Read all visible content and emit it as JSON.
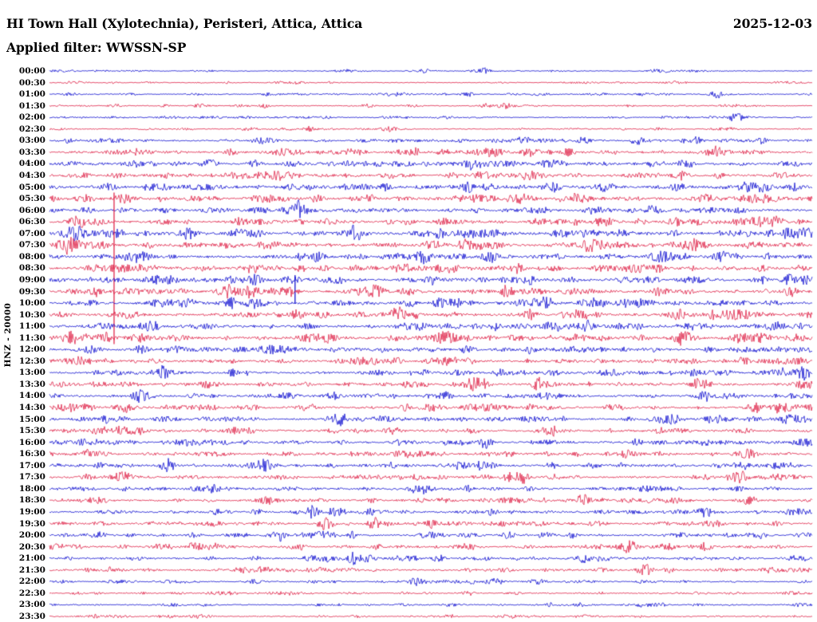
{
  "header": {
    "station_title": "HI Town Hall (Xylotechnia), Peristeri, Attica, Attica",
    "date": "2025-12-03",
    "filter_label": "Applied filter: WWSSN-SP"
  },
  "axis": {
    "left_label": "HNZ - 20000"
  },
  "chart_data": {
    "type": "helicorder-seismogram",
    "station": "HI",
    "site": "Town Hall (Xylotechnia), Peristeri, Attica, Attica",
    "channel": "HNZ",
    "amplitude_scale": 20000,
    "applied_filter": "WWSSN-SP",
    "date": "2025-12-03",
    "row_duration_minutes": 30,
    "legend_position": "none",
    "grid": false,
    "seed": 7,
    "colors": {
      "blue": "#0000cd",
      "red": "#dc143c"
    },
    "rows": [
      {
        "time": "00:00",
        "color": "blue",
        "noise": 0.6,
        "bursts": [
          [
            0.57,
            2.5,
            4
          ]
        ]
      },
      {
        "time": "00:30",
        "color": "red",
        "noise": 0.6,
        "bursts": [
          [
            0.3,
            2,
            3
          ],
          [
            0.82,
            2,
            3
          ]
        ]
      },
      {
        "time": "01:00",
        "color": "blue",
        "noise": 0.7,
        "bursts": [
          [
            0.55,
            3,
            5
          ],
          [
            0.875,
            5,
            6
          ]
        ]
      },
      {
        "time": "01:30",
        "color": "red",
        "noise": 0.7,
        "bursts": [
          [
            0.28,
            2.5,
            4
          ],
          [
            0.6,
            2.5,
            4
          ]
        ]
      },
      {
        "time": "02:00",
        "color": "blue",
        "noise": 0.7,
        "bursts": [
          [
            0.9,
            5,
            7
          ]
        ]
      },
      {
        "time": "02:30",
        "color": "red",
        "noise": 0.7,
        "bursts": [
          [
            0.34,
            2.5,
            4
          ]
        ]
      },
      {
        "time": "03:00",
        "color": "blue",
        "noise": 1.1,
        "bursts": [
          [
            0.62,
            4,
            8
          ],
          [
            0.7,
            4,
            6
          ],
          [
            0.77,
            5,
            6
          ],
          [
            0.85,
            3,
            5
          ]
        ]
      },
      {
        "time": "03:30",
        "color": "red",
        "noise": 1.4,
        "bursts": [
          [
            0.24,
            4,
            6
          ],
          [
            0.48,
            4,
            6
          ],
          [
            0.63,
            5,
            8
          ],
          [
            0.68,
            4,
            6
          ],
          [
            0.87,
            4,
            6
          ]
        ]
      },
      {
        "time": "04:00",
        "color": "blue",
        "noise": 1.5,
        "bursts": [
          [
            0.21,
            5,
            7
          ],
          [
            0.27,
            4,
            6
          ],
          [
            0.55,
            4,
            6
          ],
          [
            0.83,
            4,
            6
          ]
        ]
      },
      {
        "time": "04:30",
        "color": "red",
        "noise": 1.5,
        "bursts": [
          [
            0.3,
            5,
            7
          ],
          [
            0.53,
            4,
            6
          ],
          [
            0.83,
            5,
            6
          ],
          [
            0.88,
            4,
            5
          ]
        ]
      },
      {
        "time": "05:00",
        "color": "blue",
        "noise": 1.7,
        "bursts": [
          [
            0.08,
            4,
            6
          ],
          [
            0.44,
            4,
            6
          ],
          [
            0.55,
            4,
            5
          ],
          [
            0.91,
            4,
            5
          ]
        ]
      },
      {
        "time": "05:30",
        "color": "red",
        "noise": 1.7,
        "bursts": [
          [
            0.1,
            5,
            7
          ],
          [
            0.35,
            5,
            6
          ],
          [
            0.42,
            4,
            5
          ],
          [
            0.62,
            4,
            5
          ]
        ]
      },
      {
        "time": "06:00",
        "color": "blue",
        "noise": 1.5,
        "bursts": [
          [
            0.05,
            4,
            6
          ],
          [
            0.33,
            4,
            5
          ],
          [
            0.64,
            4,
            5
          ],
          [
            0.8,
            4,
            5
          ]
        ]
      },
      {
        "time": "06:30",
        "color": "red",
        "noise": 1.7,
        "bursts": [
          [
            0.04,
            5,
            6
          ],
          [
            0.25,
            5,
            6
          ],
          [
            0.47,
            4,
            5
          ],
          [
            0.72,
            4,
            5
          ],
          [
            0.95,
            4,
            5
          ]
        ]
      },
      {
        "time": "07:00",
        "color": "blue",
        "noise": 1.9,
        "bursts": [
          [
            0.09,
            5,
            6
          ],
          [
            0.18,
            5,
            6
          ],
          [
            0.4,
            5,
            6
          ],
          [
            0.71,
            5,
            5
          ],
          [
            0.97,
            4,
            5
          ]
        ]
      },
      {
        "time": "07:30",
        "color": "red",
        "noise": 1.9,
        "bursts": [
          [
            0.02,
            5,
            6
          ],
          [
            0.13,
            4,
            5
          ],
          [
            0.5,
            5,
            6
          ],
          [
            0.71,
            4,
            5
          ]
        ]
      },
      {
        "time": "08:00",
        "color": "blue",
        "noise": 1.7,
        "bursts": [
          [
            0.33,
            4,
            5
          ],
          [
            0.58,
            4,
            5
          ],
          [
            0.9,
            4,
            5
          ]
        ]
      },
      {
        "time": "08:30",
        "color": "red",
        "noise": 1.7,
        "spike": [
          0.0847,
          95,
          95
        ],
        "bursts": [
          [
            0.33,
            4,
            5
          ],
          [
            0.52,
            5,
            6
          ],
          [
            0.8,
            4,
            5
          ]
        ]
      },
      {
        "time": "09:00",
        "color": "blue",
        "noise": 1.7,
        "spike": [
          0.322,
          6,
          30
        ],
        "bursts": [
          [
            0.24,
            5,
            6
          ],
          [
            0.5,
            5,
            6
          ],
          [
            0.63,
            5,
            6
          ]
        ]
      },
      {
        "time": "09:30",
        "color": "red",
        "noise": 1.7,
        "bursts": [
          [
            0.235,
            6,
            7
          ],
          [
            0.26,
            5,
            5
          ],
          [
            0.6,
            4,
            5
          ]
        ]
      },
      {
        "time": "10:00",
        "color": "blue",
        "noise": 1.7,
        "bursts": [
          [
            0.47,
            5,
            6
          ],
          [
            0.51,
            5,
            5
          ],
          [
            0.65,
            5,
            5
          ],
          [
            0.78,
            4,
            5
          ]
        ]
      },
      {
        "time": "10:30",
        "color": "red",
        "noise": 1.7,
        "bursts": [
          [
            0.46,
            5,
            5
          ],
          [
            0.63,
            6,
            6
          ],
          [
            0.9,
            5,
            5
          ]
        ]
      },
      {
        "time": "11:00",
        "color": "blue",
        "noise": 1.7,
        "bursts": [
          [
            0.13,
            6,
            7
          ],
          [
            0.56,
            4,
            5
          ],
          [
            0.95,
            5,
            6
          ]
        ]
      },
      {
        "time": "11:30",
        "color": "red",
        "noise": 1.9,
        "bursts": [
          [
            0.03,
            6,
            8
          ],
          [
            0.07,
            6,
            6
          ],
          [
            0.12,
            5,
            6
          ],
          [
            0.45,
            4,
            5
          ]
        ]
      },
      {
        "time": "12:00",
        "color": "blue",
        "noise": 1.5,
        "bursts": [
          [
            0.12,
            5,
            6
          ],
          [
            0.55,
            4,
            5
          ],
          [
            0.63,
            4,
            5
          ]
        ]
      },
      {
        "time": "12:30",
        "color": "red",
        "noise": 1.5,
        "bursts": [
          [
            0.55,
            4,
            5
          ],
          [
            0.91,
            5,
            6
          ]
        ]
      },
      {
        "time": "13:00",
        "color": "blue",
        "noise": 1.5,
        "bursts": [
          [
            0.15,
            7,
            7
          ],
          [
            0.24,
            4,
            5
          ],
          [
            0.59,
            4,
            5
          ],
          [
            0.99,
            6,
            6
          ]
        ]
      },
      {
        "time": "13:30",
        "color": "red",
        "noise": 1.5,
        "bursts": [
          [
            0.47,
            4,
            5
          ],
          [
            0.64,
            5,
            5
          ],
          [
            0.85,
            4,
            5
          ],
          [
            0.99,
            5,
            5
          ]
        ]
      },
      {
        "time": "14:00",
        "color": "blue",
        "noise": 1.4,
        "bursts": [
          [
            0.52,
            4,
            5
          ],
          [
            0.65,
            4,
            5
          ],
          [
            0.86,
            5,
            5
          ]
        ]
      },
      {
        "time": "14:30",
        "color": "red",
        "noise": 1.5,
        "bursts": [
          [
            0.05,
            5,
            6
          ],
          [
            0.1,
            4,
            5
          ],
          [
            0.5,
            4,
            5
          ],
          [
            0.63,
            4,
            5
          ],
          [
            0.92,
            4,
            5
          ]
        ]
      },
      {
        "time": "15:00",
        "color": "blue",
        "noise": 1.4,
        "bursts": [
          [
            0.095,
            5,
            5
          ],
          [
            0.38,
            7,
            7
          ],
          [
            0.87,
            4,
            5
          ],
          [
            0.97,
            4,
            5
          ]
        ]
      },
      {
        "time": "15:30",
        "color": "red",
        "noise": 1.4,
        "bursts": [
          [
            0.66,
            6,
            6
          ],
          [
            0.8,
            4,
            5
          ]
        ]
      },
      {
        "time": "16:00",
        "color": "blue",
        "noise": 1.4,
        "bursts": [
          [
            0.2,
            4,
            5
          ],
          [
            0.57,
            4,
            5
          ],
          [
            0.77,
            5,
            5
          ],
          [
            0.86,
            4,
            5
          ]
        ]
      },
      {
        "time": "16:30",
        "color": "red",
        "noise": 1.4,
        "bursts": [
          [
            0.05,
            4,
            5
          ],
          [
            0.6,
            4,
            5
          ],
          [
            0.92,
            5,
            6
          ]
        ]
      },
      {
        "time": "17:00",
        "color": "blue",
        "noise": 1.4,
        "bursts": [
          [
            0.155,
            8,
            7
          ],
          [
            0.28,
            6,
            6
          ],
          [
            0.91,
            5,
            6
          ]
        ]
      },
      {
        "time": "17:30",
        "color": "red",
        "noise": 1.4,
        "bursts": [
          [
            0.05,
            4,
            5
          ],
          [
            0.62,
            6,
            6
          ],
          [
            0.9,
            5,
            5
          ]
        ]
      },
      {
        "time": "18:00",
        "color": "blue",
        "noise": 1.3,
        "bursts": [
          [
            0.215,
            5,
            5
          ],
          [
            0.55,
            4,
            5
          ],
          [
            0.78,
            4,
            5
          ]
        ]
      },
      {
        "time": "18:30",
        "color": "red",
        "noise": 1.3,
        "bursts": [
          [
            0.42,
            4,
            5
          ],
          [
            0.7,
            6,
            6
          ],
          [
            0.92,
            4,
            5
          ]
        ]
      },
      {
        "time": "19:00",
        "color": "blue",
        "noise": 1.3,
        "bursts": [
          [
            0.345,
            7,
            6
          ],
          [
            0.58,
            4,
            5
          ],
          [
            0.86,
            5,
            6
          ]
        ]
      },
      {
        "time": "19:30",
        "color": "red",
        "noise": 1.3,
        "bursts": [
          [
            0.36,
            7,
            6
          ],
          [
            0.425,
            7,
            6
          ],
          [
            0.5,
            5,
            5
          ]
        ]
      },
      {
        "time": "20:00",
        "color": "blue",
        "noise": 1.2,
        "bursts": [
          [
            0.19,
            4,
            5
          ],
          [
            0.3,
            6,
            6
          ],
          [
            0.6,
            4,
            5
          ]
        ]
      },
      {
        "time": "20:30",
        "color": "red",
        "noise": 1.3,
        "bursts": [
          [
            0.19,
            6,
            6
          ],
          [
            0.43,
            4,
            5
          ],
          [
            0.76,
            6,
            6
          ],
          [
            0.86,
            5,
            5
          ]
        ]
      },
      {
        "time": "21:00",
        "color": "blue",
        "noise": 1.2,
        "bursts": [
          [
            0.4,
            7,
            6
          ],
          [
            0.51,
            5,
            5
          ],
          [
            0.7,
            4,
            5
          ]
        ]
      },
      {
        "time": "21:30",
        "color": "red",
        "noise": 1.2,
        "bursts": [
          [
            0.28,
            4,
            5
          ],
          [
            0.78,
            6,
            7
          ],
          [
            0.81,
            5,
            5
          ]
        ]
      },
      {
        "time": "22:00",
        "color": "blue",
        "noise": 0.9,
        "bursts": [
          [
            0.48,
            3,
            4
          ]
        ]
      },
      {
        "time": "22:30",
        "color": "red",
        "noise": 0.8,
        "bursts": [
          [
            0.55,
            2.5,
            4
          ]
        ]
      },
      {
        "time": "23:00",
        "color": "blue",
        "noise": 0.8,
        "bursts": [
          [
            0.2,
            2.5,
            4
          ]
        ]
      },
      {
        "time": "23:30",
        "color": "red",
        "noise": 0.8,
        "bursts": []
      }
    ]
  }
}
